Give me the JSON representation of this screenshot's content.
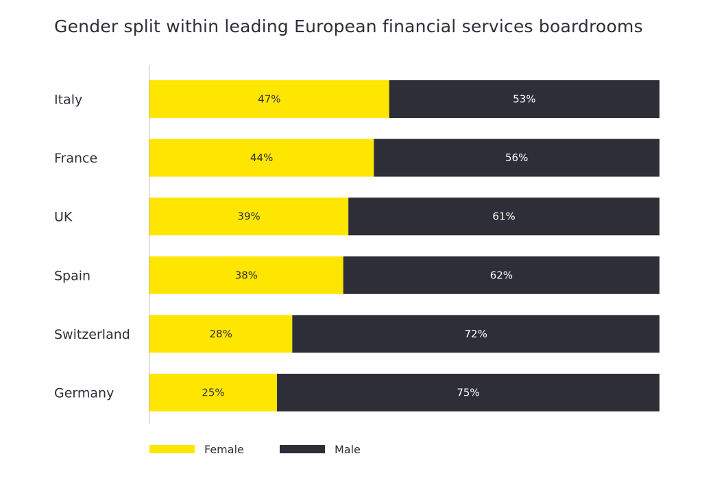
{
  "chart_data": {
    "type": "bar",
    "orientation": "horizontal",
    "stacked": true,
    "title": "Gender split within leading European financial services boardrooms",
    "categories": [
      "Italy",
      "France",
      "UK",
      "Spain",
      "Switzerland",
      "Germany"
    ],
    "series": [
      {
        "name": "Female",
        "color": "#ffe600",
        "label_color": "#2e2e38",
        "values": [
          47,
          44,
          39,
          38,
          28,
          25
        ],
        "labels": [
          "47%",
          "44%",
          "39%",
          "38%",
          "28%",
          "25%"
        ]
      },
      {
        "name": "Male",
        "color": "#2e2e38",
        "label_color": "#ffffff",
        "values": [
          53,
          56,
          61,
          62,
          72,
          75
        ],
        "labels": [
          "53%",
          "56%",
          "61%",
          "62%",
          "72%",
          "75%"
        ]
      }
    ],
    "xlim": [
      0,
      100
    ],
    "grid": false,
    "legend": "bottom-left"
  }
}
